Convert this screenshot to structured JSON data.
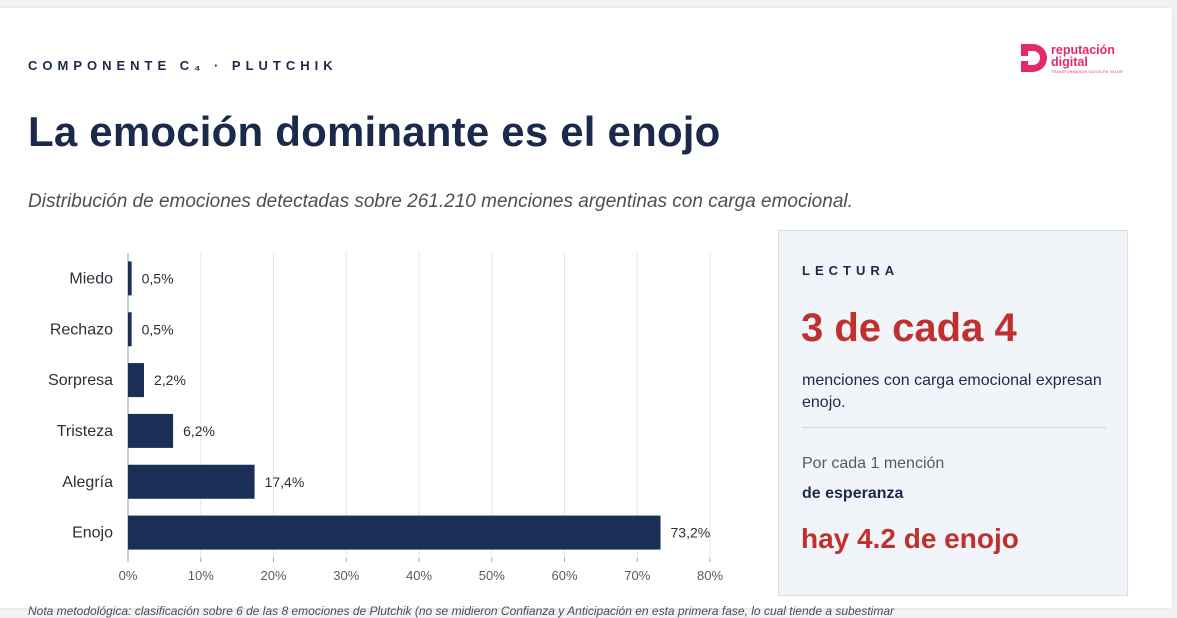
{
  "header": {
    "eyebrow": "COMPONENTE C₄ · PLUTCHIK",
    "logo_text_line1": "reputación",
    "logo_text_line2": "digital",
    "logo_tagline": "TRANSFORMAMOS DATOS EN VALOR"
  },
  "title": "La emoción dominante es el enojo",
  "subtitle": "Distribución de emociones detectadas sobre 261.210 menciones argentinas con carga emocional.",
  "chart_data": {
    "type": "bar",
    "orientation": "horizontal",
    "categories": [
      "Miedo",
      "Rechazo",
      "Sorpresa",
      "Tristeza",
      "Alegría",
      "Enojo"
    ],
    "values": [
      0.5,
      0.5,
      2.2,
      6.2,
      17.4,
      73.2
    ],
    "value_labels": [
      "0,5%",
      "0,5%",
      "2,2%",
      "6,2%",
      "17,4%",
      "73,2%"
    ],
    "xlim": [
      0,
      80
    ],
    "x_ticks": [
      0,
      10,
      20,
      30,
      40,
      50,
      60,
      70,
      80
    ],
    "x_tick_labels": [
      "0%",
      "10%",
      "20%",
      "30%",
      "40%",
      "50%",
      "60%",
      "70%",
      "80%"
    ],
    "grid": true,
    "bar_color": "#1b2f56"
  },
  "panel": {
    "label": "LECTURA",
    "big_stat": "3 de cada 4",
    "description": "menciones con carga emocional expresan enojo.",
    "ratio_lead": "Por cada 1 mención",
    "ratio_strong": "de esperanza",
    "ratio_result": "hay 4.2 de enojo"
  },
  "footnote": "Nota metodológica: clasificación sobre 6 de las 8 emociones de Plutchik (no se midieron Confianza y Anticipación en esta primera fase, lo cual tiende a subestimar",
  "colors": {
    "navy": "#1b2a4a",
    "accent_red": "#c0302f",
    "brand_pink": "#e5286c",
    "panel_bg": "#f1f4f8"
  }
}
